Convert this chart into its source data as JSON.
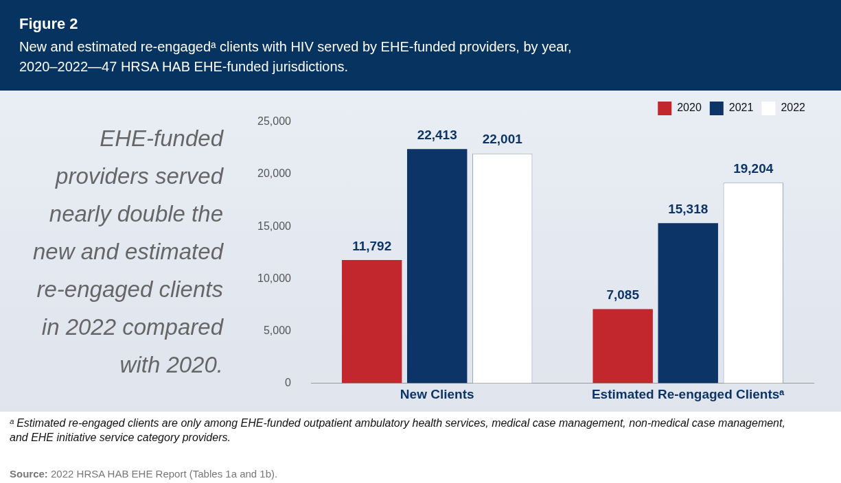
{
  "chart_data": {
    "type": "bar",
    "title": "Figure 2",
    "subtitle": "New and estimated re-engagedᵃ clients with HIV served by EHE-funded providers, by year, 2020–2022—47 HRSA HAB EHE-funded jurisdictions.",
    "categories": [
      "New Clients",
      "Estimated Re-engaged Clientsᵃ"
    ],
    "series": [
      {
        "name": "2020",
        "color": "#c1272d",
        "values": [
          11792,
          7085
        ],
        "value_labels": [
          "11,792",
          "7,085"
        ]
      },
      {
        "name": "2021",
        "color": "#0d3466",
        "values": [
          22413,
          15318
        ],
        "value_labels": [
          "22,413",
          "15,318"
        ]
      },
      {
        "name": "2022",
        "color": "#ffffff",
        "values": [
          22001,
          19204
        ],
        "value_labels": [
          "22,001",
          "19,204"
        ]
      }
    ],
    "ylim": [
      0,
      25000
    ],
    "yticks": [
      0,
      {
        "value": 5000,
        "label": "5,000"
      },
      {
        "value": 10000,
        "label": "10,000"
      },
      {
        "value": 15000,
        "label": "15,000"
      },
      {
        "value": 20000,
        "label": "20,000"
      },
      {
        "value": 25000,
        "label": "25,000"
      }
    ],
    "grid": false,
    "legend": "top right",
    "annotations": [
      "EHE-funded providers served nearly double the new and estimated re-engaged clients in 2022 compared with 2020.",
      "ᵃ Estimated re-engaged clients are only among EHE-funded outpatient ambulatory health services, medical case management, non-medical case management, and EHE initiative service category providers.",
      "Source: 2022 HRSA HAB EHE Report (Tables 1a and 1b)."
    ]
  }
}
